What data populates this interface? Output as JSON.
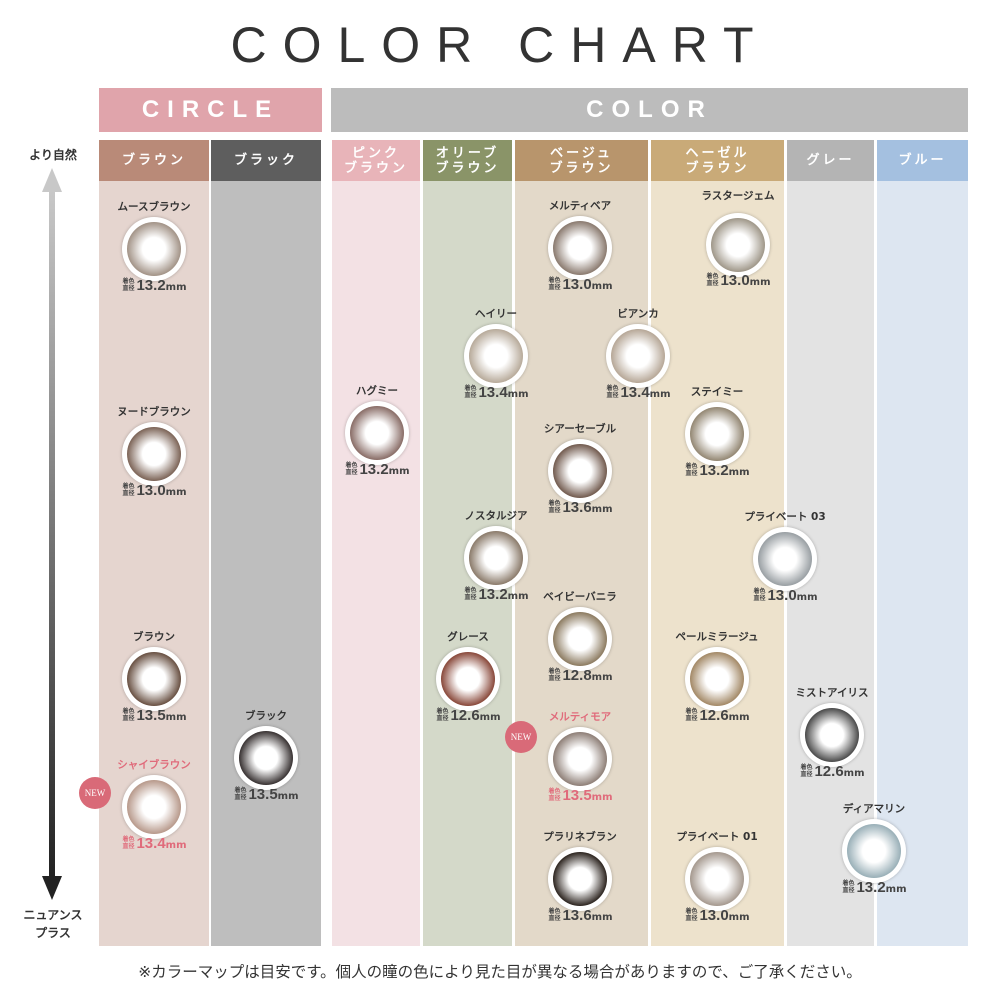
{
  "title": "COLOR CHART",
  "groups": {
    "circle": "CIRCLE",
    "color": "COLOR",
    "circle_color": "#e0a4ab",
    "color_color": "#bcbcbc"
  },
  "axis": {
    "top": "より自然",
    "bottom": "ニュアンス\nプラス"
  },
  "columns": [
    {
      "label": "ブラウン",
      "head": "#b98a78",
      "body": "#e5d5cf"
    },
    {
      "label": "ブラック",
      "head": "#5e5e5e",
      "body": "#bebebe"
    },
    {
      "label": "ピンク\nブラウン",
      "head": "#e8b4b9",
      "body": "#f3e1e4"
    },
    {
      "label": "オリーブ\nブラウン",
      "head": "#8a9468",
      "body": "#d4d9c9"
    },
    {
      "label": "ベージュ\nブラウン",
      "head": "#b8956c",
      "body": "#e3d9c9"
    },
    {
      "label": "ヘーゼル\nブラウン",
      "head": "#c9aa78",
      "body": "#ede2cc"
    },
    {
      "label": "グレー",
      "head": "#b4b4b4",
      "body": "#e3e3e3"
    },
    {
      "label": "ブルー",
      "head": "#a4c0e0",
      "body": "#dde6f1"
    }
  ],
  "size_label": "着色直径",
  "size_unit": "mm",
  "new_badge": "NEW",
  "lenses": [
    {
      "name": "ムースブラウン",
      "size": "13.2",
      "tint": "#a39488"
    },
    {
      "name": "ヌードブラウン",
      "size": "13.0",
      "tint": "#7d6558"
    },
    {
      "name": "ブラウン",
      "size": "13.5",
      "tint": "#6a5244"
    },
    {
      "name": "シャイブラウン",
      "size": "13.4",
      "tint": "#b89a8c",
      "new": true
    },
    {
      "name": "ブラック",
      "size": "13.5",
      "tint": "#3a3434"
    },
    {
      "name": "ハグミー",
      "size": "13.2",
      "tint": "#8a6e68"
    },
    {
      "name": "ヘイリー",
      "size": "13.4",
      "tint": "#b8ab9b"
    },
    {
      "name": "ノスタルジア",
      "size": "13.2",
      "tint": "#8c7c6c"
    },
    {
      "name": "グレース",
      "size": "12.6",
      "tint": "#8a4a3c"
    },
    {
      "name": "メルティベア",
      "size": "13.0",
      "tint": "#8b7b70"
    },
    {
      "name": "ビアンカ",
      "size": "13.4",
      "tint": "#b7a898"
    },
    {
      "name": "シアーセーブル",
      "size": "13.6",
      "tint": "#735c50"
    },
    {
      "name": "ベイビーバニラ",
      "size": "12.8",
      "tint": "#8d7c62"
    },
    {
      "name": "メルティモア",
      "size": "13.5",
      "tint": "#8f8078",
      "new": true
    },
    {
      "name": "プラリネブラン",
      "size": "13.6",
      "tint": "#2f2722"
    },
    {
      "name": "ラスタージェム",
      "size": "13.0",
      "tint": "#a0988a"
    },
    {
      "name": "ステイミー",
      "size": "13.2",
      "tint": "#948874"
    },
    {
      "name": "プライベート 03",
      "size": "13.0",
      "tint": "#9aa0a4"
    },
    {
      "name": "ペールミラージュ",
      "size": "12.6",
      "tint": "#a48a68"
    },
    {
      "name": "プライベート 01",
      "size": "13.0",
      "tint": "#a69a90"
    },
    {
      "name": "ミストアイリス",
      "size": "12.6",
      "tint": "#4c4c4c"
    },
    {
      "name": "ディアマリン",
      "size": "13.2",
      "tint": "#9ab0b8"
    }
  ],
  "footer": "※カラーマップは目安です。個人の瞳の色により見た目が異なる場合がありますので、ご了承ください。"
}
